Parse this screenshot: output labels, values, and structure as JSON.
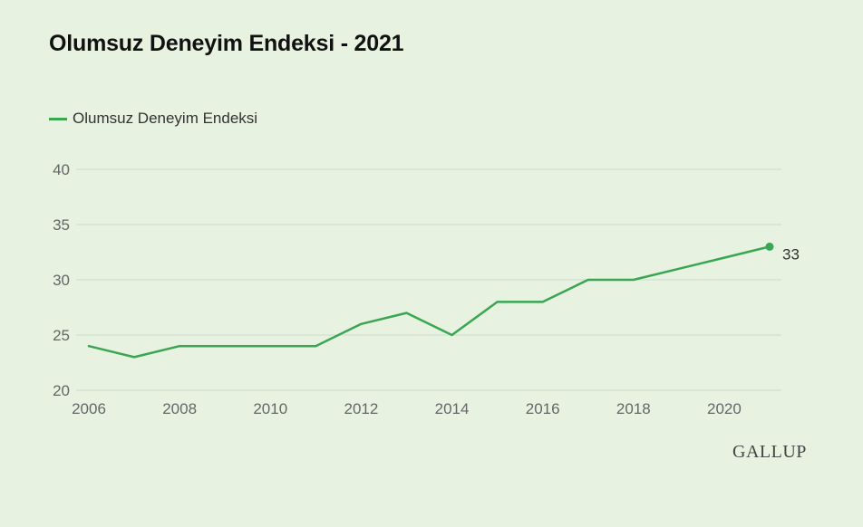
{
  "title": "Olumsuz Deneyim Endeksi - 2021",
  "logo": "GALLUP",
  "colors": {
    "line": "#3aa652",
    "grid": "#cfdcca",
    "background": "#e7f2e1"
  },
  "chart_data": {
    "type": "line",
    "title": "Olumsuz Deneyim Endeksi - 2021",
    "xlabel": "",
    "ylabel": "",
    "x": [
      2006,
      2007,
      2008,
      2009,
      2010,
      2011,
      2012,
      2013,
      2014,
      2015,
      2016,
      2017,
      2018,
      2019,
      2020,
      2021
    ],
    "series": [
      {
        "name": "Olumsuz Deneyim Endeksi",
        "values": [
          24,
          23,
          24,
          24,
          24,
          24,
          26,
          27,
          25,
          28,
          28,
          30,
          30,
          31,
          32,
          33
        ]
      }
    ],
    "xticks": [
      "2006",
      "2008",
      "2010",
      "2012",
      "2014",
      "2016",
      "2018",
      "2020"
    ],
    "yticks": [
      "20",
      "25",
      "30",
      "35",
      "40"
    ],
    "xlim": [
      2006,
      2021
    ],
    "ylim": [
      20,
      40
    ],
    "end_label": "33",
    "grid": true,
    "legend_position": "top-left"
  }
}
